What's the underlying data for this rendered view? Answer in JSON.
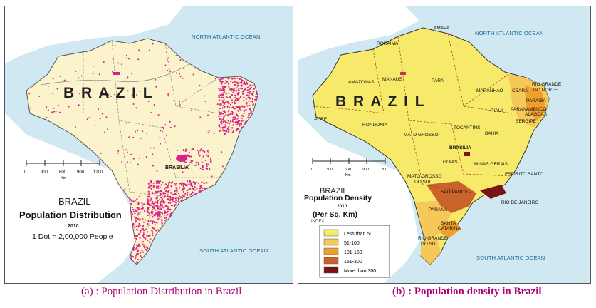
{
  "panel_a": {
    "ocean_north": "NORTH ATLANTIC OCEAN",
    "ocean_south": "SOUTH ATLANTIC OCEAN",
    "country_label": "B R A Z I L",
    "city": "BRASILIA",
    "scale_ticks": [
      "0",
      "300",
      "600",
      "900",
      "1200"
    ],
    "scale_unit": "Km",
    "legend_country": "BRAZIL",
    "legend_title": "Population Distribution",
    "legend_year": "2010",
    "legend_dot": "1 Dot = 2,00,000 People",
    "colors": {
      "land": "#fbf3cc",
      "dots": "#d8208a",
      "sea": "#cfe8f2",
      "neighbour": "#ffffff"
    }
  },
  "panel_b": {
    "ocean_north": "NORTH ATLANTIC OCEAN",
    "ocean_south": "SOUTH ATLANTIC OCEAN",
    "country_label": "B R A Z I L",
    "scale_ticks": [
      "0",
      "300",
      "600",
      "900",
      "1200"
    ],
    "scale_unit": "Km",
    "legend_country": "BRAZIL",
    "legend_title": "Population Density",
    "legend_year": "2010",
    "legend_unit": "(Per Sq. Km)",
    "legend_index": "INDEX",
    "legend_items": [
      {
        "label": "Less than 50",
        "color": "#f7e96a"
      },
      {
        "label": "51-100",
        "color": "#f6c85a"
      },
      {
        "label": "101-150",
        "color": "#ef9f2a"
      },
      {
        "label": "151-300",
        "color": "#c9632a"
      },
      {
        "label": "More than 300",
        "color": "#7a1410"
      }
    ],
    "states": {
      "roraima": "RORAIMA",
      "amapa": "AMAPA",
      "amazonas": "AMAZONAS",
      "manaus": "MANAUS",
      "para": "PARA",
      "maranhao": "MARANHAO",
      "ceara": "CEARA",
      "rgdn1": "RIO GRANDE",
      "rgdn2": "DO NORTE",
      "paraiba": "PARAIBA",
      "pernambuco": "PARANAMBUCO",
      "alagoas": "ALAGOAS",
      "sergipe": "SERGIPE",
      "piaui": "PIAUI",
      "acre": "ACRE",
      "rondonia": "RONDONIA",
      "tocantins": "TOCANTINS",
      "bahia": "BAHIA",
      "mato_grosso": "MATO GROSSO",
      "brasilia": "BRASILIA",
      "goias": "GOIAS",
      "minas": "MINAS GERAIS",
      "espirito": "ESPIRITO SANTO",
      "mgds1": "MATO GROSSO",
      "mgds2": "DO SUL",
      "sao_paulo": "SAO PAULO",
      "rio": "RIO DE JANEIRO",
      "parana": "PARANA",
      "sc1": "SANTA",
      "sc2": "CATARINA",
      "rgds1": "RIO GRANDE",
      "rgds2": "DO SUL"
    }
  },
  "captions": {
    "a": "(a) : Population Distribution in Brazil",
    "b": "(b) :  Population density in Brazil"
  }
}
